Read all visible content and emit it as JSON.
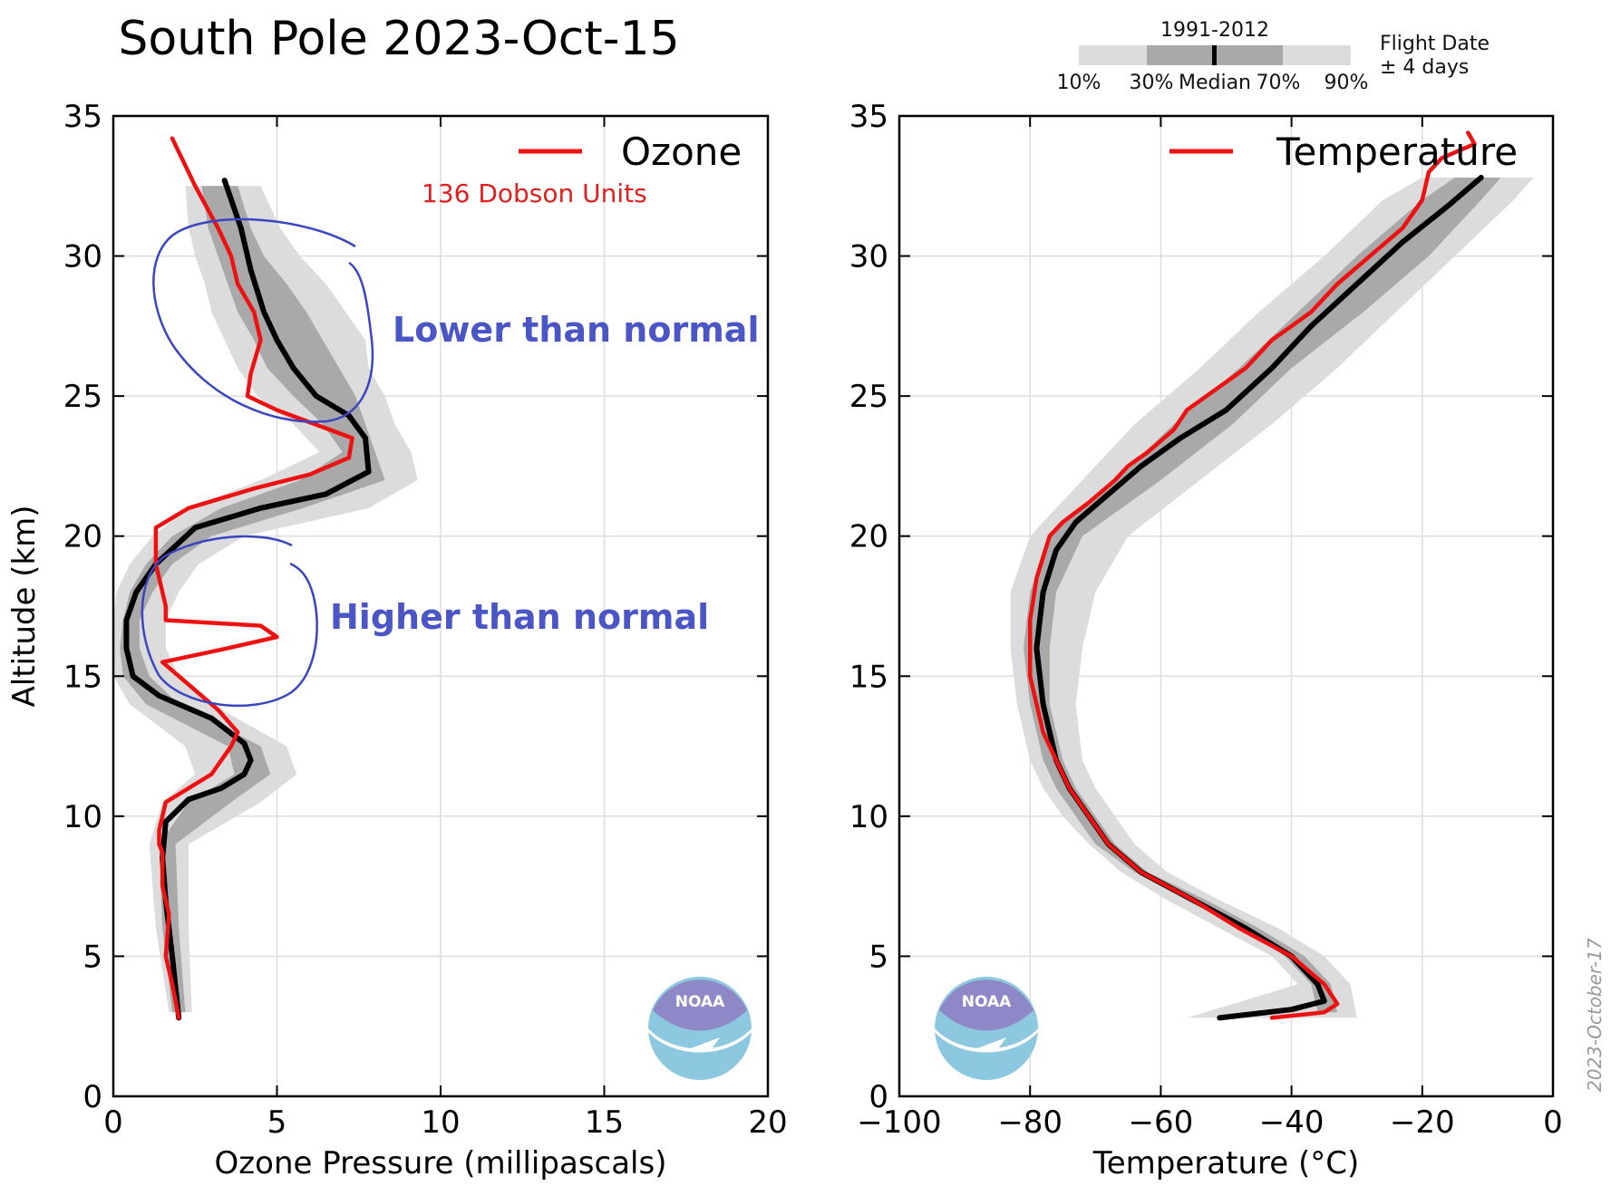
{
  "title": "South Pole 2023-Oct-15",
  "date_stamp": "2023-October-17",
  "climatology_legend": {
    "period": "1991-2012",
    "labels": [
      "10%",
      "30%",
      "Median",
      "70%",
      "90%"
    ],
    "note_line1": "Flight Date",
    "note_line2": "± 4 days"
  },
  "logo_text": "NOAA",
  "annotations": {
    "lower": "Lower than normal",
    "higher": "Higher than normal",
    "total_column": "136 Dobson Units"
  },
  "colors": {
    "observed": "#ee1111",
    "median": "#000000",
    "band_outer": "#dcdcdc",
    "band_inner": "#a9a9a9",
    "annotation": "#4a55c6",
    "logo_top": "#8f88c6",
    "logo_bottom": "#8cc9e0"
  },
  "chart_data": [
    {
      "type": "line",
      "legend": "Ozone",
      "xlabel": "Ozone Pressure (millipascals)",
      "ylabel": "Altitude (km)",
      "xlim": [
        0,
        20
      ],
      "ylim": [
        0,
        35
      ],
      "xticks": [
        "0",
        "5",
        "10",
        "15",
        "20"
      ],
      "yticks": [
        "0",
        "5",
        "10",
        "15",
        "20",
        "25",
        "30",
        "35"
      ],
      "grid": true,
      "legend_position": "top-right",
      "observed": {
        "x": [
          2.0,
          1.8,
          1.6,
          1.7,
          1.5,
          1.5,
          1.4,
          1.4,
          1.5,
          1.6,
          3.0,
          3.6,
          3.8,
          3.2,
          1.5,
          3.5,
          5.0,
          4.5,
          1.6,
          1.6,
          1.5,
          1.3,
          1.3,
          2.3,
          4.3,
          6.0,
          7.2,
          7.3,
          5.0,
          4.1,
          4.2,
          4.5,
          4.3,
          3.8,
          3.6,
          3.2,
          2.5,
          1.8
        ],
        "y": [
          2.8,
          4.0,
          5.0,
          6.5,
          7.5,
          8.7,
          9.0,
          9.5,
          10.0,
          10.5,
          11.5,
          12.5,
          13.0,
          13.8,
          15.5,
          16.0,
          16.4,
          16.8,
          17.0,
          17.5,
          18.0,
          19.0,
          20.3,
          21.0,
          21.7,
          22.2,
          22.8,
          23.5,
          24.5,
          25.0,
          25.8,
          27.0,
          28.0,
          29.0,
          30.0,
          31.0,
          32.5,
          34.2
        ]
      },
      "median": {
        "x": [
          2.0,
          1.8,
          1.6,
          1.5,
          1.6,
          2.3,
          3.3,
          4.0,
          4.2,
          4.0,
          3.0,
          1.4,
          0.6,
          0.4,
          0.4,
          0.7,
          1.3,
          2.5,
          4.5,
          6.5,
          7.8,
          7.7,
          7.2,
          6.2,
          5.5,
          5.0,
          4.6,
          4.2,
          3.9,
          3.4
        ],
        "y": [
          2.8,
          5.0,
          7.0,
          8.5,
          9.8,
          10.6,
          11.0,
          11.5,
          12.0,
          12.6,
          13.5,
          14.3,
          15.0,
          16.0,
          17.0,
          18.0,
          19.0,
          20.3,
          21.0,
          21.5,
          22.3,
          23.5,
          24.3,
          25.0,
          26.0,
          27.0,
          28.0,
          29.5,
          31.0,
          32.7
        ]
      },
      "band_30_70": {
        "y": [
          3.0,
          6.0,
          9.0,
          10.5,
          11.5,
          12.5,
          14.0,
          15.0,
          16.0,
          17.0,
          18.0,
          19.0,
          20.0,
          21.0,
          22.0,
          23.0,
          24.0,
          25.0,
          26.0,
          27.0,
          28.0,
          29.0,
          30.0,
          31.0,
          32.5
        ],
        "low": [
          1.8,
          1.5,
          1.4,
          2.3,
          3.7,
          3.5,
          1.0,
          0.3,
          0.2,
          0.3,
          0.5,
          1.0,
          1.8,
          3.3,
          5.7,
          7.0,
          6.4,
          5.5,
          4.7,
          4.3,
          3.8,
          3.5,
          3.2,
          2.9,
          2.7
        ],
        "high": [
          2.2,
          2.0,
          1.9,
          3.6,
          4.8,
          4.5,
          2.0,
          1.1,
          0.8,
          0.8,
          1.2,
          1.8,
          3.0,
          5.8,
          8.3,
          8.0,
          7.7,
          7.4,
          6.9,
          6.4,
          5.9,
          5.3,
          4.6,
          4.2,
          3.8
        ]
      },
      "band_10_90": {
        "y": [
          3.0,
          6.0,
          9.0,
          10.5,
          11.5,
          12.5,
          14.0,
          15.0,
          16.0,
          17.0,
          18.0,
          19.0,
          20.0,
          21.0,
          22.0,
          23.0,
          24.0,
          25.0,
          26.0,
          27.0,
          28.0,
          29.0,
          30.0,
          31.0,
          32.5
        ],
        "low": [
          1.7,
          1.3,
          1.1,
          1.5,
          2.5,
          2.2,
          0.5,
          0.0,
          0.0,
          0.0,
          0.1,
          0.5,
          1.2,
          2.3,
          4.5,
          6.3,
          5.5,
          4.4,
          3.8,
          3.4,
          3.0,
          2.8,
          2.5,
          2.3,
          2.2
        ],
        "high": [
          2.4,
          2.3,
          2.3,
          4.5,
          5.6,
          5.3,
          3.0,
          2.0,
          1.6,
          1.6,
          2.0,
          2.6,
          4.0,
          7.8,
          9.3,
          9.1,
          8.6,
          8.3,
          7.8,
          7.7,
          7.1,
          6.5,
          5.7,
          5.1,
          4.5
        ]
      }
    },
    {
      "type": "line",
      "legend": "Temperature",
      "xlabel": "Temperature (°C)",
      "xlim": [
        -100,
        0
      ],
      "ylim": [
        0,
        35
      ],
      "xticks": [
        "−100",
        "−80",
        "−60",
        "−40",
        "−20",
        "0"
      ],
      "yticks": [
        "0",
        "5",
        "10",
        "15",
        "20",
        "25",
        "30",
        "35"
      ],
      "grid": true,
      "legend_position": "top-right",
      "observed": {
        "x": [
          -43,
          -35,
          -33,
          -35,
          -40,
          -48,
          -55,
          -63,
          -68,
          -71,
          -74,
          -76,
          -78,
          -80,
          -80,
          -79,
          -77,
          -75,
          -71,
          -67,
          -65,
          -62,
          -58,
          -56,
          -53,
          -50,
          -47,
          -43,
          -40,
          -37,
          -33,
          -28,
          -23,
          -20,
          -19,
          -17,
          -14,
          -12,
          -13
        ],
        "y": [
          2.8,
          3.0,
          3.3,
          4.0,
          5.0,
          6.0,
          7.0,
          8.0,
          9.0,
          10.0,
          11.0,
          12.0,
          13.0,
          15.0,
          17.0,
          18.5,
          20.0,
          20.5,
          21.2,
          22.0,
          22.5,
          23.0,
          23.8,
          24.5,
          25.0,
          25.5,
          26.0,
          27.0,
          27.5,
          28.0,
          29.0,
          30.0,
          31.0,
          32.0,
          33.0,
          33.5,
          33.8,
          34.0,
          34.4
        ]
      },
      "median": {
        "x": [
          -51,
          -40,
          -35,
          -36,
          -40,
          -47,
          -55,
          -63,
          -68,
          -71,
          -74,
          -76,
          -78,
          -79,
          -78,
          -76,
          -73,
          -68,
          -63,
          -57,
          -50,
          -43,
          -37,
          -30,
          -23,
          -16,
          -11
        ],
        "y": [
          2.8,
          3.1,
          3.4,
          4.0,
          5.0,
          6.0,
          7.0,
          8.0,
          9.0,
          10.0,
          11.0,
          12.0,
          14.0,
          16.0,
          18.0,
          19.5,
          20.5,
          21.5,
          22.5,
          23.5,
          24.5,
          26.0,
          27.5,
          29.0,
          30.5,
          31.8,
          32.8
        ]
      },
      "band_30_70": {
        "y": [
          3.0,
          4.0,
          5.0,
          6.0,
          7.0,
          8.0,
          9.0,
          10.0,
          11.0,
          12.0,
          14.0,
          16.0,
          18.0,
          20.0,
          22.0,
          24.0,
          26.0,
          28.0,
          30.0,
          32.0,
          32.8
        ],
        "low": [
          -36,
          -37,
          -41,
          -48,
          -56,
          -64,
          -70,
          -73,
          -76,
          -78,
          -80,
          -81,
          -80,
          -77,
          -67,
          -58,
          -48,
          -39,
          -30,
          -20,
          -15
        ],
        "high": [
          -33,
          -34,
          -38,
          -45,
          -53,
          -62,
          -67,
          -70,
          -73,
          -75,
          -77,
          -77,
          -76,
          -72,
          -60,
          -49,
          -40,
          -29,
          -19,
          -11,
          -8
        ]
      },
      "band_10_90": {
        "y": [
          2.8,
          4.0,
          5.0,
          6.0,
          7.0,
          8.0,
          9.0,
          10.0,
          11.0,
          12.0,
          14.0,
          16.0,
          18.0,
          20.0,
          22.0,
          24.0,
          26.0,
          28.0,
          30.0,
          32.0,
          32.8
        ],
        "low": [
          -56,
          -39,
          -43,
          -51,
          -59,
          -66,
          -71,
          -75,
          -78,
          -80,
          -82,
          -83,
          -83,
          -80,
          -72,
          -64,
          -54,
          -45,
          -35,
          -26,
          -20
        ],
        "high": [
          -30,
          -31,
          -35,
          -42,
          -51,
          -59,
          -64,
          -67,
          -70,
          -72,
          -73,
          -72,
          -70,
          -65,
          -54,
          -43,
          -33,
          -24,
          -15,
          -6,
          -3
        ]
      }
    }
  ]
}
